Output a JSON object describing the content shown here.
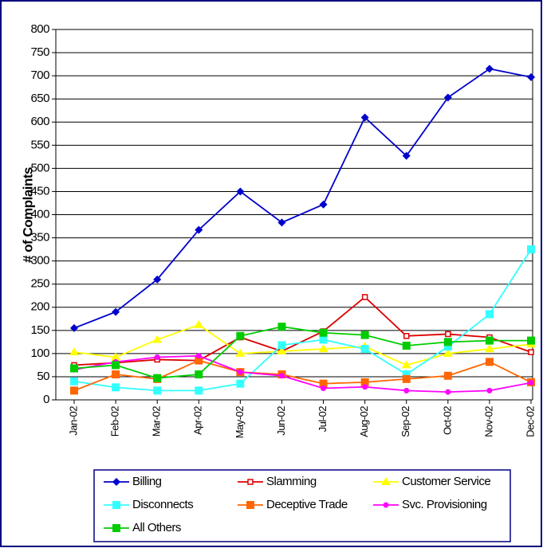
{
  "chart_data": {
    "type": "line",
    "y_label": "# of Complaints",
    "categories": [
      "Jan-02",
      "Feb-02",
      "Mar-02",
      "Apr-02",
      "May-02",
      "Jun-02",
      "Jul-02",
      "Aug-02",
      "Sep-02",
      "Oct-02",
      "Nov-02",
      "Dec-02"
    ],
    "series": [
      {
        "name": "Billing",
        "color": "#0000cc",
        "marker": "diamond",
        "values": [
          155,
          190,
          260,
          367,
          450,
          383,
          422,
          610,
          527,
          653,
          715,
          697
        ]
      },
      {
        "name": "Slamming",
        "color": "#dd0000",
        "marker": "open-square",
        "values": [
          75,
          80,
          87,
          85,
          135,
          105,
          148,
          222,
          138,
          142,
          135,
          103
        ]
      },
      {
        "name": "Customer Service",
        "color": "#ffff00",
        "marker": "triangle",
        "values": [
          103,
          92,
          130,
          162,
          100,
          105,
          110,
          115,
          75,
          100,
          110,
          120
        ]
      },
      {
        "name": "Disconnects",
        "color": "#33ffff",
        "marker": "square",
        "values": [
          40,
          27,
          20,
          20,
          35,
          118,
          130,
          110,
          55,
          115,
          185,
          325
        ]
      },
      {
        "name": "Deceptive Trade",
        "color": "#ff6600",
        "marker": "square",
        "values": [
          20,
          55,
          45,
          85,
          60,
          55,
          35,
          38,
          45,
          52,
          82,
          38
        ]
      },
      {
        "name": "Svc. Provisioning",
        "color": "#ff00ff",
        "marker": "circle",
        "values": [
          65,
          82,
          92,
          95,
          60,
          52,
          25,
          28,
          20,
          17,
          20,
          37
        ]
      },
      {
        "name": "All Others",
        "color": "#00cc00",
        "marker": "square",
        "values": [
          68,
          75,
          47,
          55,
          138,
          158,
          145,
          140,
          117,
          125,
          128,
          128
        ]
      }
    ],
    "ylim": [
      0,
      800
    ],
    "yticks": [
      0,
      50,
      100,
      150,
      200,
      250,
      300,
      350,
      400,
      450,
      500,
      550,
      600,
      650,
      700,
      750,
      800
    ],
    "grid": true
  }
}
